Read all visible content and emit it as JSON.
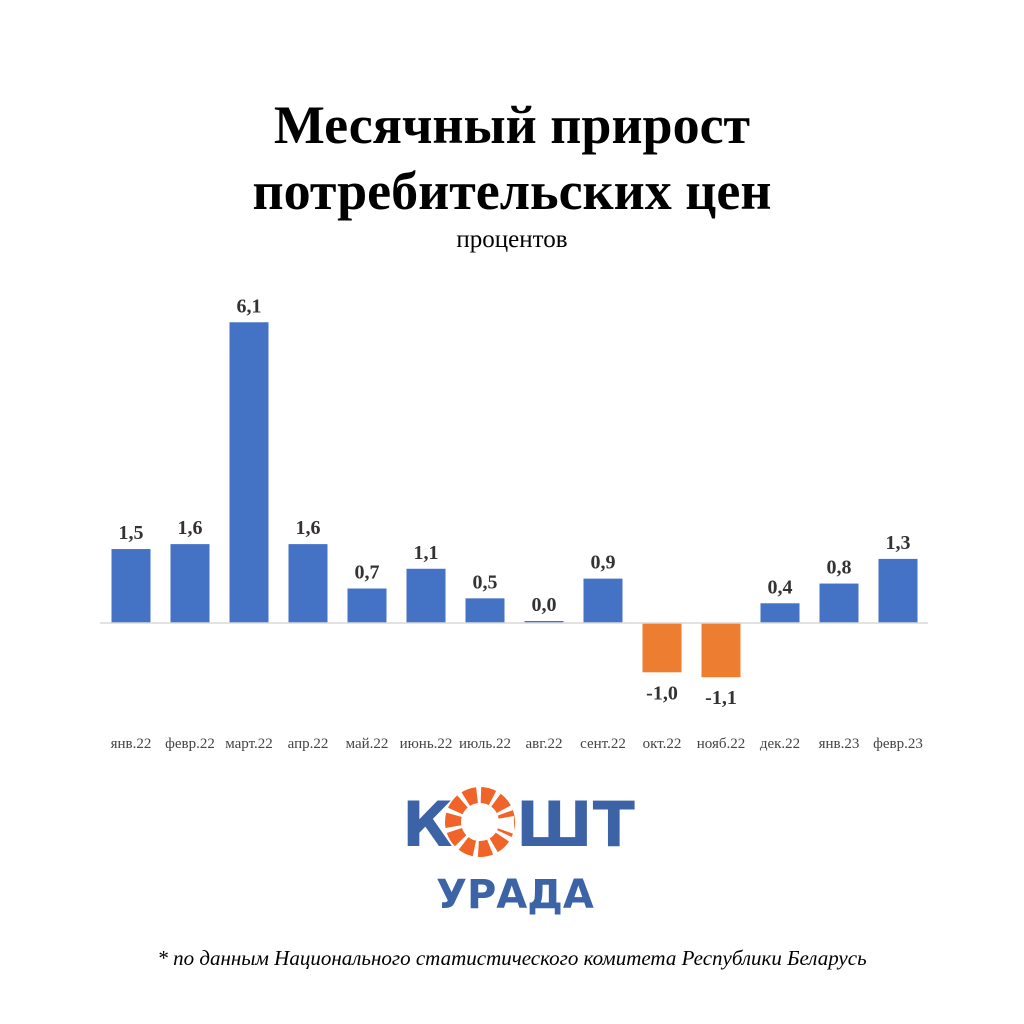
{
  "chart_data": {
    "type": "bar",
    "title": "Месячный прирост потребительских цен",
    "title_lines": [
      "Месячный прирост",
      "потребительских цен"
    ],
    "subtitle": "процентов",
    "xlabel": "",
    "ylabel": "",
    "categories": [
      "янв.22",
      "февр.22",
      "март.22",
      "апр.22",
      "май.22",
      "июнь.22",
      "июль.22",
      "авг.22",
      "сент.22",
      "окт.22",
      "нояб.22",
      "дек.22",
      "янв.23",
      "февр.23"
    ],
    "values": [
      1.5,
      1.6,
      6.1,
      1.6,
      0.7,
      1.1,
      0.5,
      0.0,
      0.9,
      -1.0,
      -1.1,
      0.4,
      0.8,
      1.3
    ],
    "data_labels": [
      "1,5",
      "1,6",
      "6,1",
      "1,6",
      "0,7",
      "1,1",
      "0,5",
      "0,0",
      "0,9",
      "-1,0",
      "-1,1",
      "0,4",
      "0,8",
      "1,3"
    ],
    "ylim": [
      -2,
      7
    ],
    "grid": false,
    "legend": "none",
    "colors": {
      "positive": "#4472c4",
      "negative": "#ed7d31"
    }
  },
  "logo": {
    "line1": "КОШТ",
    "line2": "УРАДА",
    "blue": "#3b63a6",
    "orange": "#f0642a"
  },
  "footnote": "* по данным Национального статистического комитета Республики Беларусь"
}
